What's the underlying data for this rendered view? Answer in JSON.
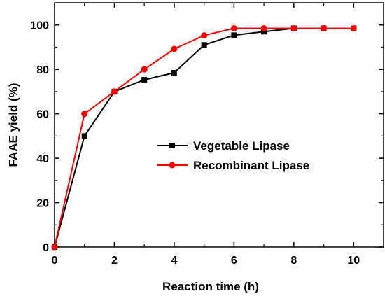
{
  "chart_data": {
    "type": "line",
    "title": "",
    "xlabel": "Reaction time (h)",
    "ylabel": "FAAE yield (%)",
    "xlim": [
      0,
      11
    ],
    "ylim": [
      0,
      110
    ],
    "xticks": [
      0,
      2,
      4,
      6,
      8,
      10
    ],
    "yticks": [
      0,
      20,
      40,
      60,
      80,
      100
    ],
    "grid": false,
    "legend_position": "center-right",
    "series": [
      {
        "name": "Vegetable Lipase",
        "color": "#000000",
        "marker": "square",
        "x": [
          0,
          1,
          2,
          3,
          4,
          5,
          6,
          7,
          8,
          9,
          10
        ],
        "y": [
          0,
          50,
          70,
          75.3,
          78.5,
          91,
          95.4,
          97,
          98.5,
          98.5,
          98.5
        ]
      },
      {
        "name": "Recombinant Lipase",
        "color": "#ff0000",
        "marker": "circle",
        "x": [
          0,
          1,
          2,
          3,
          4,
          5,
          6,
          7,
          8,
          9,
          10
        ],
        "y": [
          0,
          60,
          70,
          80,
          89.2,
          95.3,
          98.5,
          98.5,
          98.5,
          98.5,
          98.5
        ]
      }
    ]
  }
}
